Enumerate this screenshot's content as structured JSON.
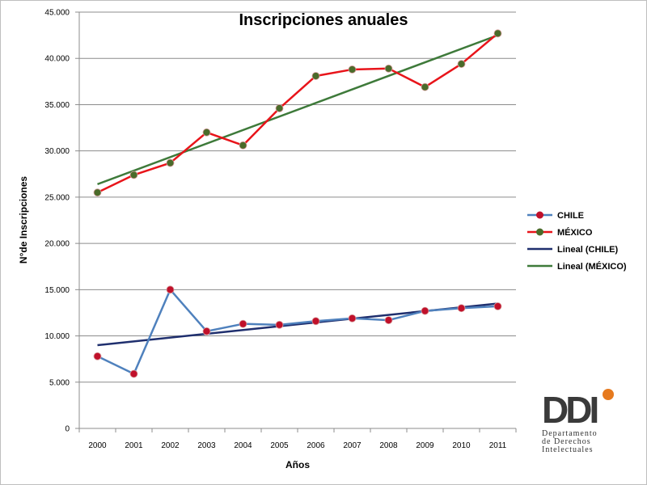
{
  "chart_data": {
    "type": "line",
    "title": "Inscripciones anuales",
    "xlabel": "Años",
    "ylabel": "N°de Inscripciones",
    "categories": [
      "2000",
      "2001",
      "2002",
      "2003",
      "2004",
      "2005",
      "2006",
      "2007",
      "2008",
      "2009",
      "2010",
      "2011"
    ],
    "ylim": [
      0,
      45000
    ],
    "yticks": [
      0,
      5000,
      10000,
      15000,
      20000,
      25000,
      30000,
      35000,
      40000,
      45000
    ],
    "ytick_labels": [
      "0",
      "5.000",
      "10.000",
      "15.000",
      "20.000",
      "25.000",
      "30.000",
      "35.000",
      "40.000",
      "45.000"
    ],
    "grid": true,
    "legend_position": "right",
    "series": [
      {
        "name": "CHILE",
        "color": "#4f81bd",
        "marker_color": "#c0102a",
        "values": [
          7800,
          5900,
          15000,
          10500,
          11300,
          11200,
          11600,
          11900,
          11700,
          12700,
          13000,
          13200
        ]
      },
      {
        "name": "MÉXICO",
        "color": "#e8141a",
        "marker_color": "#4a6b2a",
        "values": [
          25500,
          27400,
          28700,
          32000,
          30600,
          34600,
          38100,
          38800,
          38900,
          36900,
          39400,
          42700
        ]
      }
    ],
    "trendlines": [
      {
        "name": "Lineal (CHILE)",
        "color": "#1f2f6e",
        "start": 9000,
        "end": 13500
      },
      {
        "name": "Lineal (MÉXICO)",
        "color": "#3e7a3a",
        "start": 26400,
        "end": 42500
      }
    ]
  },
  "logo": {
    "mark": "DDI",
    "line1": "Departamento",
    "line2": "de Derechos",
    "line3": "Intelectuales",
    "colors": {
      "dark": "#3a3a3a",
      "accent": "#e67a1e"
    }
  }
}
